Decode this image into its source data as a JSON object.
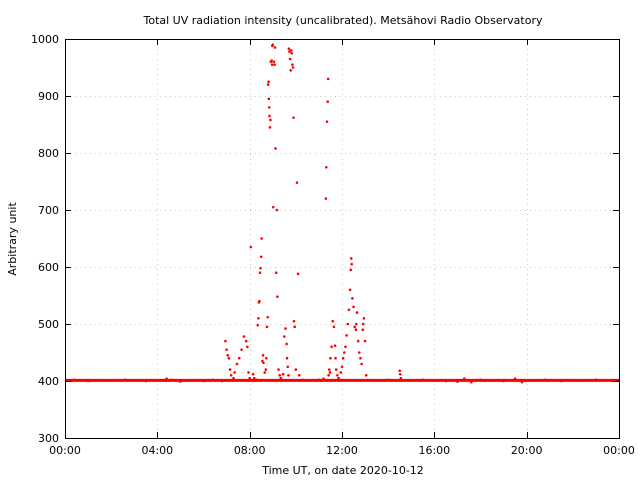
{
  "chart_data": {
    "type": "scatter",
    "title": "Total UV radiation intensity (uncalibrated). Metsähovi Radio Observatory",
    "xlabel": "Time UT, on date 2020-10-12",
    "ylabel": "Arbitrary unit",
    "xlim": [
      0,
      24
    ],
    "ylim": [
      300,
      1000
    ],
    "x_ticks": [
      {
        "value": 0,
        "label": "00:00"
      },
      {
        "value": 4,
        "label": "04:00"
      },
      {
        "value": 8,
        "label": "08:00"
      },
      {
        "value": 12,
        "label": "12:00"
      },
      {
        "value": 16,
        "label": "16:00"
      },
      {
        "value": 20,
        "label": "20:00"
      },
      {
        "value": 24,
        "label": "00:00"
      }
    ],
    "y_ticks": [
      300,
      400,
      500,
      600,
      700,
      800,
      900,
      1000
    ],
    "grid": true,
    "marker_color": "#ff0000",
    "baseline": {
      "value": 401,
      "from": 0,
      "to": 24
    },
    "series": [
      {
        "points": [
          [
            0.4,
            402
          ],
          [
            1.0,
            400
          ],
          [
            1.8,
            401
          ],
          [
            2.6,
            402
          ],
          [
            3.5,
            400
          ],
          [
            4.2,
            401
          ],
          [
            4.4,
            404
          ],
          [
            4.6,
            402
          ],
          [
            5.0,
            399
          ],
          [
            5.5,
            401
          ],
          [
            6.0,
            400
          ],
          [
            6.4,
            402
          ],
          [
            6.8,
            400
          ],
          [
            6.95,
            470
          ],
          [
            7.0,
            455
          ],
          [
            7.05,
            445
          ],
          [
            7.1,
            440
          ],
          [
            7.15,
            420
          ],
          [
            7.2,
            410
          ],
          [
            7.3,
            405
          ],
          [
            7.35,
            415
          ],
          [
            7.45,
            430
          ],
          [
            7.55,
            440
          ],
          [
            7.65,
            455
          ],
          [
            7.75,
            478
          ],
          [
            7.85,
            470
          ],
          [
            7.9,
            460
          ],
          [
            7.95,
            415
          ],
          [
            8.0,
            405
          ],
          [
            8.05,
            635
          ],
          [
            8.15,
            412
          ],
          [
            8.2,
            405
          ],
          [
            8.3,
            402
          ],
          [
            8.35,
            498
          ],
          [
            8.38,
            510
          ],
          [
            8.4,
            538
          ],
          [
            8.42,
            540
          ],
          [
            8.45,
            590
          ],
          [
            8.47,
            598
          ],
          [
            8.5,
            618
          ],
          [
            8.52,
            650
          ],
          [
            8.55,
            435
          ],
          [
            8.58,
            445
          ],
          [
            8.6,
            432
          ],
          [
            8.65,
            415
          ],
          [
            8.7,
            420
          ],
          [
            8.72,
            440
          ],
          [
            8.75,
            495
          ],
          [
            8.78,
            512
          ],
          [
            8.8,
            920
          ],
          [
            8.82,
            925
          ],
          [
            8.83,
            895
          ],
          [
            8.85,
            880
          ],
          [
            8.86,
            865
          ],
          [
            8.88,
            845
          ],
          [
            8.9,
            858
          ],
          [
            8.92,
            960
          ],
          [
            8.95,
            962
          ],
          [
            8.97,
            955
          ],
          [
            8.98,
            988
          ],
          [
            9.0,
            990
          ],
          [
            9.02,
            705
          ],
          [
            9.05,
            960
          ],
          [
            9.08,
            955
          ],
          [
            9.1,
            985
          ],
          [
            9.12,
            808
          ],
          [
            9.15,
            590
          ],
          [
            9.18,
            700
          ],
          [
            9.2,
            548
          ],
          [
            9.25,
            420
          ],
          [
            9.3,
            410
          ],
          [
            9.35,
            405
          ],
          [
            9.4,
            402
          ],
          [
            9.45,
            412
          ],
          [
            9.5,
            478
          ],
          [
            9.55,
            492
          ],
          [
            9.6,
            465
          ],
          [
            9.62,
            440
          ],
          [
            9.65,
            425
          ],
          [
            9.68,
            410
          ],
          [
            9.7,
            983
          ],
          [
            9.72,
            978
          ],
          [
            9.75,
            965
          ],
          [
            9.78,
            945
          ],
          [
            9.8,
            980
          ],
          [
            9.82,
            975
          ],
          [
            9.85,
            955
          ],
          [
            9.88,
            950
          ],
          [
            9.9,
            862
          ],
          [
            9.92,
            505
          ],
          [
            9.95,
            495
          ],
          [
            10.0,
            420
          ],
          [
            10.05,
            748
          ],
          [
            10.1,
            588
          ],
          [
            10.15,
            410
          ],
          [
            10.3,
            402
          ],
          [
            10.6,
            401
          ],
          [
            11.0,
            402
          ],
          [
            11.2,
            404
          ],
          [
            11.3,
            720
          ],
          [
            11.32,
            775
          ],
          [
            11.35,
            855
          ],
          [
            11.38,
            890
          ],
          [
            11.4,
            930
          ],
          [
            11.42,
            410
          ],
          [
            11.45,
            420
          ],
          [
            11.48,
            415
          ],
          [
            11.5,
            440
          ],
          [
            11.55,
            460
          ],
          [
            11.6,
            505
          ],
          [
            11.65,
            495
          ],
          [
            11.7,
            462
          ],
          [
            11.72,
            440
          ],
          [
            11.75,
            420
          ],
          [
            11.8,
            410
          ],
          [
            11.85,
            405
          ],
          [
            11.95,
            415
          ],
          [
            12.0,
            425
          ],
          [
            12.05,
            440
          ],
          [
            12.1,
            450
          ],
          [
            12.15,
            460
          ],
          [
            12.2,
            480
          ],
          [
            12.25,
            500
          ],
          [
            12.3,
            525
          ],
          [
            12.35,
            560
          ],
          [
            12.38,
            595
          ],
          [
            12.4,
            615
          ],
          [
            12.42,
            605
          ],
          [
            12.45,
            545
          ],
          [
            12.5,
            530
          ],
          [
            12.55,
            495
          ],
          [
            12.6,
            490
          ],
          [
            12.62,
            500
          ],
          [
            12.65,
            520
          ],
          [
            12.7,
            470
          ],
          [
            12.75,
            450
          ],
          [
            12.8,
            440
          ],
          [
            12.85,
            430
          ],
          [
            12.9,
            490
          ],
          [
            12.92,
            500
          ],
          [
            12.95,
            510
          ],
          [
            13.0,
            470
          ],
          [
            13.05,
            410
          ],
          [
            13.5,
            401
          ],
          [
            14.0,
            402
          ],
          [
            14.5,
            418
          ],
          [
            14.52,
            412
          ],
          [
            14.55,
            405
          ],
          [
            15.0,
            401
          ],
          [
            15.5,
            402
          ],
          [
            16.0,
            401
          ],
          [
            16.5,
            400
          ],
          [
            17.0,
            399
          ],
          [
            17.3,
            404
          ],
          [
            17.6,
            398
          ],
          [
            18.0,
            402
          ],
          [
            18.5,
            401
          ],
          [
            19.0,
            400
          ],
          [
            19.5,
            404
          ],
          [
            19.8,
            398
          ],
          [
            20.2,
            401
          ],
          [
            20.8,
            402
          ],
          [
            21.5,
            400
          ],
          [
            22.2,
            401
          ],
          [
            23.0,
            402
          ],
          [
            23.7,
            401
          ]
        ]
      }
    ]
  }
}
